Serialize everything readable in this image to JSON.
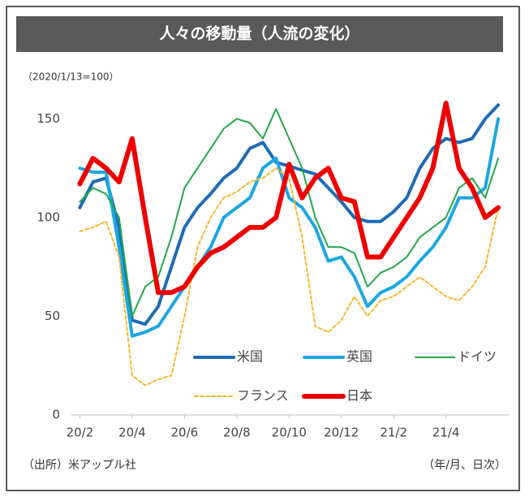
{
  "chart_data": {
    "type": "line",
    "title": "人々の移動量（人流の変化）",
    "subtitle": "（2020/1/13=100）",
    "source": "（出所）米アップル社",
    "x_note": "（年/月、日次）",
    "x": [
      0,
      0.5,
      1,
      1.5,
      2,
      2.5,
      3,
      3.5,
      4,
      4.5,
      5,
      5.5,
      6,
      6.5,
      7,
      7.5,
      8,
      8.5,
      9,
      9.5,
      10,
      10.5,
      11,
      11.5,
      12,
      12.5,
      13,
      13.5,
      14,
      14.5,
      15,
      15.5,
      16
    ],
    "xlim": [
      -0.2,
      16.4
    ],
    "xticks": [
      {
        "value": 0,
        "label": "20/2"
      },
      {
        "value": 2,
        "label": "20/4"
      },
      {
        "value": 4,
        "label": "20/6"
      },
      {
        "value": 6,
        "label": "20/8"
      },
      {
        "value": 8,
        "label": "20/10"
      },
      {
        "value": 10,
        "label": "20/12"
      },
      {
        "value": 12,
        "label": "21/2"
      },
      {
        "value": 14,
        "label": "21/4"
      }
    ],
    "ylim": [
      0,
      160
    ],
    "yticks": [
      0,
      50,
      100,
      150
    ],
    "grid": false,
    "series": [
      {
        "name": "米国",
        "color": "#1f6bb5",
        "width": 4,
        "dashed": false,
        "values": [
          105,
          118,
          120,
          95,
          48,
          46,
          55,
          75,
          95,
          105,
          112,
          120,
          125,
          135,
          138,
          128,
          126,
          124,
          122,
          115,
          108,
          100,
          98,
          98,
          103,
          110,
          125,
          135,
          140,
          138,
          140,
          150,
          157
        ]
      },
      {
        "name": "英国",
        "color": "#1aa7e0",
        "width": 4,
        "dashed": false,
        "values": [
          125,
          123,
          123,
          85,
          40,
          42,
          45,
          55,
          65,
          75,
          85,
          100,
          105,
          110,
          125,
          130,
          110,
          105,
          95,
          78,
          80,
          70,
          55,
          62,
          65,
          70,
          78,
          85,
          95,
          110,
          110,
          115,
          150
        ]
      },
      {
        "name": "ドイツ",
        "color": "#22a84a",
        "width": 2,
        "dashed": false,
        "values": [
          108,
          115,
          112,
          100,
          50,
          65,
          70,
          90,
          115,
          125,
          135,
          145,
          150,
          148,
          140,
          155,
          140,
          125,
          100,
          85,
          85,
          82,
          65,
          72,
          75,
          80,
          90,
          95,
          100,
          115,
          120,
          110,
          130
        ]
      },
      {
        "name": "フランス",
        "color": "#f5b82e",
        "width": 2,
        "dashed": true,
        "values": [
          93,
          95,
          98,
          80,
          20,
          15,
          18,
          20,
          50,
          85,
          100,
          110,
          113,
          118,
          120,
          125,
          120,
          90,
          45,
          42,
          48,
          60,
          50,
          58,
          60,
          65,
          70,
          65,
          60,
          58,
          65,
          75,
          105
        ]
      },
      {
        "name": "日本",
        "color": "#ee0000",
        "width": 6,
        "dashed": false,
        "values": [
          117,
          130,
          125,
          118,
          140,
          100,
          62,
          62,
          65,
          75,
          82,
          85,
          90,
          95,
          95,
          100,
          127,
          110,
          120,
          125,
          110,
          108,
          80,
          80,
          90,
          100,
          110,
          125,
          158,
          125,
          115,
          100,
          105
        ]
      }
    ]
  }
}
